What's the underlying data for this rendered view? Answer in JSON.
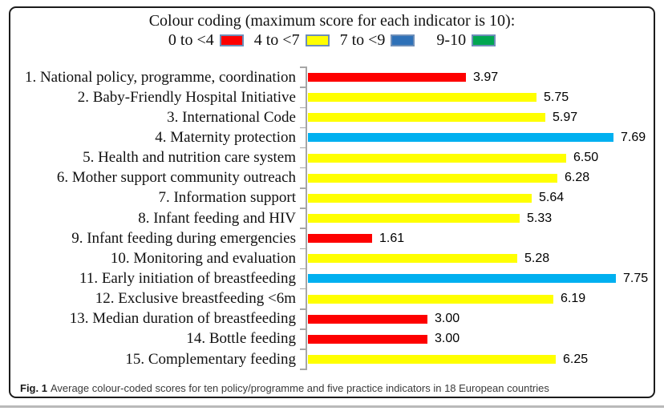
{
  "legend": {
    "title": "Colour coding (maximum score for each indicator is 10):",
    "bands": [
      {
        "label": "0 to <4",
        "color": "red"
      },
      {
        "label": "4 to <7",
        "color": "yellow"
      },
      {
        "label": "7 to <9",
        "color": "blue"
      },
      {
        "label": "9-10",
        "color": "green"
      }
    ]
  },
  "colors": {
    "red": "#fe0000",
    "yellow": "#ffff00",
    "blue": "#00b0f0",
    "legend_blue": "#2e71b8",
    "green": "#00a651",
    "swatch_border": "#6d8eb8",
    "axis": "#a6a6a6"
  },
  "chart_data": {
    "type": "bar",
    "orientation": "horizontal",
    "title": "Colour coding (maximum score for each indicator is 10):",
    "value_axis_range": [
      0,
      10
    ],
    "max_score": 10,
    "grid": false,
    "legend_position": "top",
    "categories": [
      "1. National policy, programme, coordination",
      "2. Baby-Friendly Hospital Initiative",
      "3. International Code",
      "4. Maternity protection",
      "5. Health and nutrition care system",
      "6. Mother support community outreach",
      "7. Information support",
      "8. Infant feeding and HIV",
      "9. Infant feeding during emergencies",
      "10. Monitoring and evaluation",
      "11. Early initiation of breastfeeding",
      "12. Exclusive breastfeeding <6m",
      "13. Median duration of breastfeeding",
      "14. Bottle feeding",
      "15. Complementary feeding"
    ],
    "values": [
      3.97,
      5.75,
      5.97,
      7.69,
      6.5,
      6.28,
      5.64,
      5.33,
      1.61,
      5.28,
      7.75,
      6.19,
      3.0,
      3.0,
      6.25
    ],
    "items": [
      {
        "label": "1. National policy, programme, coordination",
        "value": 3.97,
        "display": "3.97",
        "band": "red"
      },
      {
        "label": "2. Baby-Friendly Hospital Initiative",
        "value": 5.75,
        "display": "5.75",
        "band": "yellow"
      },
      {
        "label": "3. International Code",
        "value": 5.97,
        "display": "5.97",
        "band": "yellow"
      },
      {
        "label": "4. Maternity protection",
        "value": 7.69,
        "display": "7.69",
        "band": "blue"
      },
      {
        "label": "5. Health and nutrition care system",
        "value": 6.5,
        "display": "6.50",
        "band": "yellow"
      },
      {
        "label": "6. Mother support community outreach",
        "value": 6.28,
        "display": "6.28",
        "band": "yellow"
      },
      {
        "label": "7. Information support",
        "value": 5.64,
        "display": "5.64",
        "band": "yellow"
      },
      {
        "label": "8. Infant feeding and HIV",
        "value": 5.33,
        "display": "5.33",
        "band": "yellow"
      },
      {
        "label": "9. Infant feeding during emergencies",
        "value": 1.61,
        "display": "1.61",
        "band": "red"
      },
      {
        "label": "10. Monitoring and evaluation",
        "value": 5.28,
        "display": "5.28",
        "band": "yellow"
      },
      {
        "label": "11. Early initiation of breastfeeding",
        "value": 7.75,
        "display": "7.75",
        "band": "blue"
      },
      {
        "label": "12. Exclusive breastfeeding <6m",
        "value": 6.19,
        "display": "6.19",
        "band": "yellow"
      },
      {
        "label": "13. Median duration of breastfeeding",
        "value": 3.0,
        "display": "3.00",
        "band": "red"
      },
      {
        "label": "14. Bottle feeding",
        "value": 3.0,
        "display": "3.00",
        "band": "red"
      },
      {
        "label": "15. Complementary feeding",
        "value": 6.25,
        "display": "6.25",
        "band": "yellow"
      }
    ]
  },
  "caption": {
    "label": "Fig. 1",
    "text": "Average colour-coded scores for ten policy/programme and five practice indicators in 18 European countries"
  }
}
